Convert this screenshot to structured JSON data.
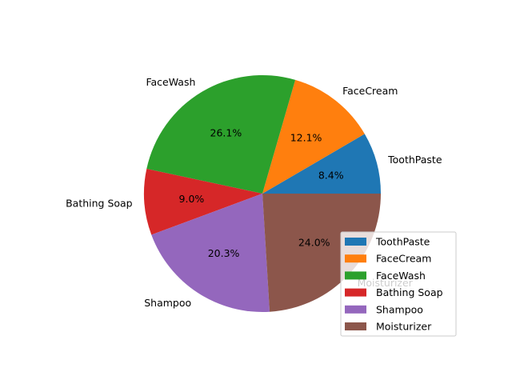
{
  "chart_data": {
    "type": "pie",
    "start_angle_deg": 0,
    "direction": "counterclockwise",
    "legend_placement": "lower-right",
    "slices": [
      {
        "label": "ToothPaste",
        "value": 8.4,
        "pct_label": "8.4%",
        "color": "#1f77b4"
      },
      {
        "label": "FaceCream",
        "value": 12.1,
        "pct_label": "12.1%",
        "color": "#ff7f0e"
      },
      {
        "label": "FaceWash",
        "value": 26.1,
        "pct_label": "26.1%",
        "color": "#2ca02c"
      },
      {
        "label": "Bathing Soap",
        "value": 9.0,
        "pct_label": "9.0%",
        "color": "#d62728"
      },
      {
        "label": "Shampoo",
        "value": 20.3,
        "pct_label": "20.3%",
        "color": "#9467bd"
      },
      {
        "label": "Moisturizer",
        "value": 24.0,
        "pct_label": "24.0%",
        "color": "#8c564b"
      }
    ]
  }
}
